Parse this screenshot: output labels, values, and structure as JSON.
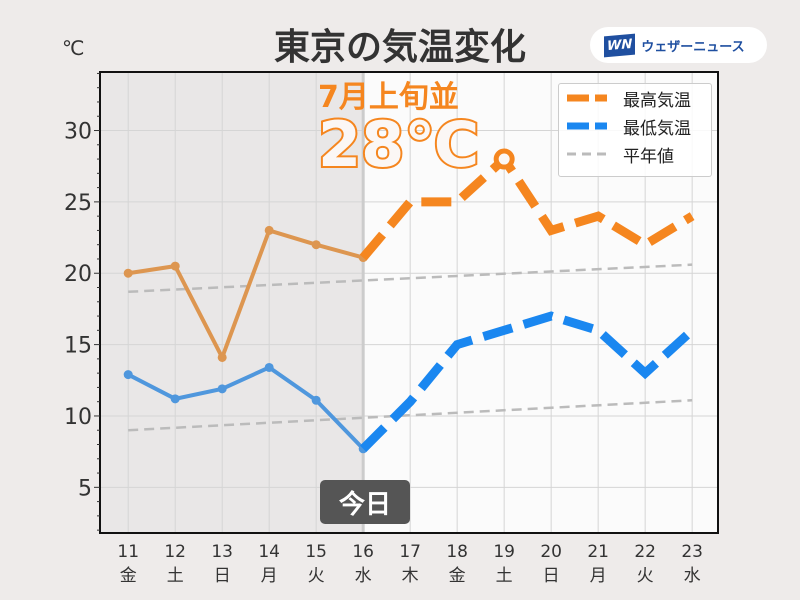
{
  "title": "東京の気温変化",
  "unit": "℃",
  "logo": {
    "mark": "WN",
    "text": "ウェザーニュース"
  },
  "annotation": {
    "line1": "7月上旬並",
    "line2": "28℃"
  },
  "today_label": "今日",
  "colors": {
    "high": "#f5861f",
    "low": "#1a87f0",
    "high_obs": "#dd9650",
    "low_obs": "#4f97dd",
    "normal": "#bbbbbb",
    "past_bg": "#e9e7e7"
  },
  "chart_data": {
    "type": "line",
    "ylim": [
      1.8,
      34.1
    ],
    "xlim": [
      10.4,
      23.55
    ],
    "yticks": [
      5,
      10,
      15,
      20,
      25,
      30
    ],
    "grid": true,
    "legend_placement": "top-right",
    "x": [
      11,
      12,
      13,
      14,
      15,
      16,
      17,
      18,
      19,
      20,
      21,
      22,
      23
    ],
    "x_days": [
      "11",
      "12",
      "13",
      "14",
      "15",
      "16",
      "17",
      "18",
      "19",
      "20",
      "21",
      "22",
      "23"
    ],
    "x_weekdays": [
      "金",
      "土",
      "日",
      "月",
      "火",
      "水",
      "木",
      "金",
      "土",
      "日",
      "月",
      "火",
      "水"
    ],
    "x_colors": [
      "#333",
      "#1a87f0",
      "#e03030",
      "#333",
      "#333",
      "#333",
      "#333",
      "#333",
      "#1a87f0",
      "#e03030",
      "#333",
      "#333",
      "#333"
    ],
    "series": [
      {
        "name": "最高気温",
        "observed": [
          20,
          20.5,
          14.1,
          23,
          22,
          21.1
        ],
        "forecast_x": [
          16,
          17,
          18,
          19,
          20,
          21,
          22,
          23
        ],
        "forecast": [
          21.1,
          25,
          25,
          28,
          23,
          24,
          22,
          24
        ]
      },
      {
        "name": "最低気温",
        "observed": [
          12.9,
          11.2,
          11.9,
          13.4,
          11.1,
          7.7
        ],
        "forecast_x": [
          16,
          17,
          18,
          19,
          20,
          21,
          22,
          23
        ],
        "forecast": [
          7.7,
          11,
          15,
          16,
          17,
          16,
          13,
          16
        ]
      },
      {
        "name": "平年値",
        "high": [
          18.7,
          20.6
        ],
        "low": [
          9.0,
          11.1
        ]
      }
    ]
  }
}
